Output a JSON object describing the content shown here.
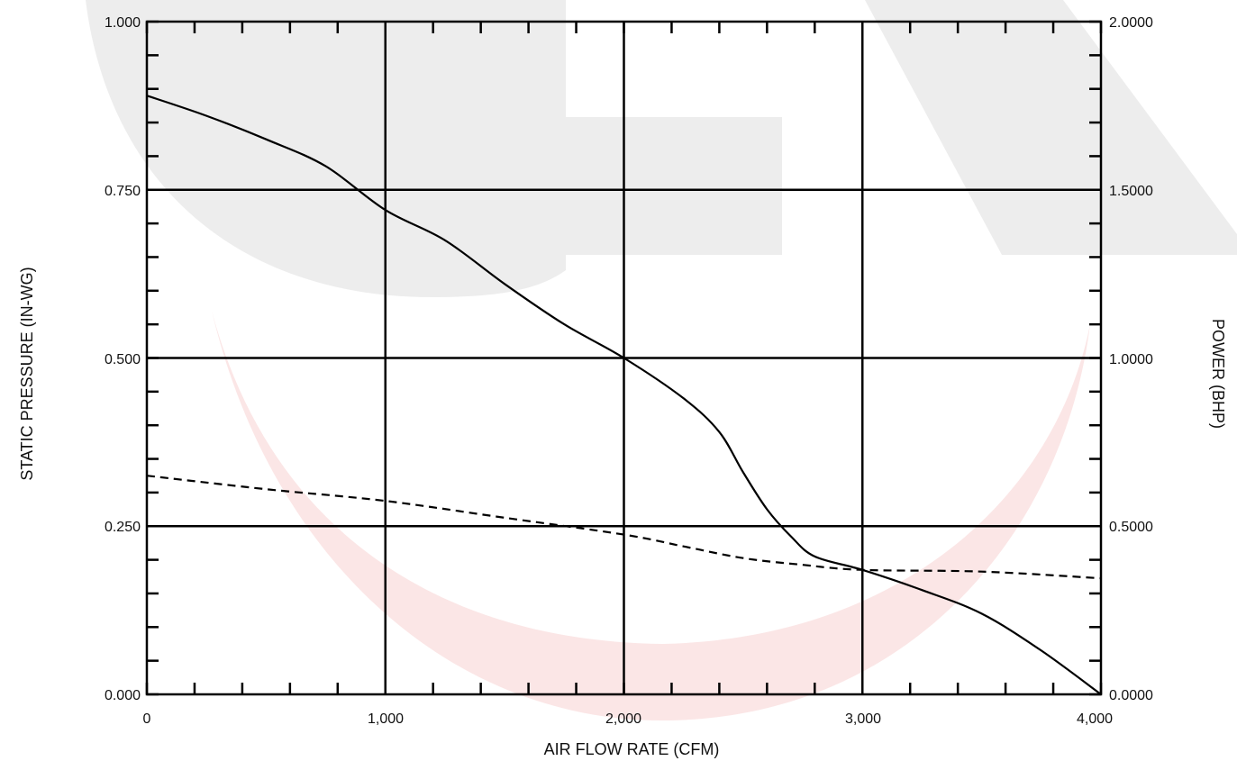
{
  "chart_data": {
    "type": "line",
    "title": "",
    "xlabel": "AIR FLOW RATE (CFM)",
    "ylabel": "STATIC PRESSURE (IN-WG)",
    "y2label": "POWER (BHP)",
    "xlim": [
      0,
      4000
    ],
    "ylim": [
      0,
      1.0
    ],
    "y2lim": [
      0,
      2.0
    ],
    "x_ticks": [
      "0",
      "1,000",
      "2,000",
      "3,000",
      "4,000"
    ],
    "y_ticks": [
      "0.000",
      "0.250",
      "0.500",
      "0.750",
      "1.000"
    ],
    "y2_ticks": [
      "0.0000",
      "0.5000",
      "1.0000",
      "1.5000",
      "2.0000"
    ],
    "grid": true,
    "legend": "none",
    "series": [
      {
        "axis": "left",
        "style": "solid",
        "color": "#000000",
        "points": [
          [
            0,
            0.89
          ],
          [
            250,
            0.86
          ],
          [
            500,
            0.825
          ],
          [
            750,
            0.785
          ],
          [
            1000,
            0.72
          ],
          [
            1250,
            0.675
          ],
          [
            1500,
            0.61
          ],
          [
            1750,
            0.55
          ],
          [
            2000,
            0.5
          ],
          [
            2250,
            0.44
          ],
          [
            2400,
            0.39
          ],
          [
            2500,
            0.33
          ],
          [
            2600,
            0.275
          ],
          [
            2700,
            0.235
          ],
          [
            2800,
            0.205
          ],
          [
            3000,
            0.185
          ],
          [
            3250,
            0.155
          ],
          [
            3500,
            0.12
          ],
          [
            3750,
            0.065
          ],
          [
            4000,
            0.0
          ]
        ]
      },
      {
        "axis": "right",
        "style": "dashed",
        "color": "#000000",
        "points": [
          [
            0,
            0.65
          ],
          [
            500,
            0.61
          ],
          [
            1000,
            0.575
          ],
          [
            1500,
            0.525
          ],
          [
            2000,
            0.475
          ],
          [
            2250,
            0.44
          ],
          [
            2500,
            0.405
          ],
          [
            2750,
            0.385
          ],
          [
            3000,
            0.37
          ],
          [
            3500,
            0.365
          ],
          [
            4000,
            0.345
          ]
        ]
      }
    ]
  },
  "watermark": {
    "color_gray": "#ededed",
    "color_red": "#fbe6e6"
  }
}
